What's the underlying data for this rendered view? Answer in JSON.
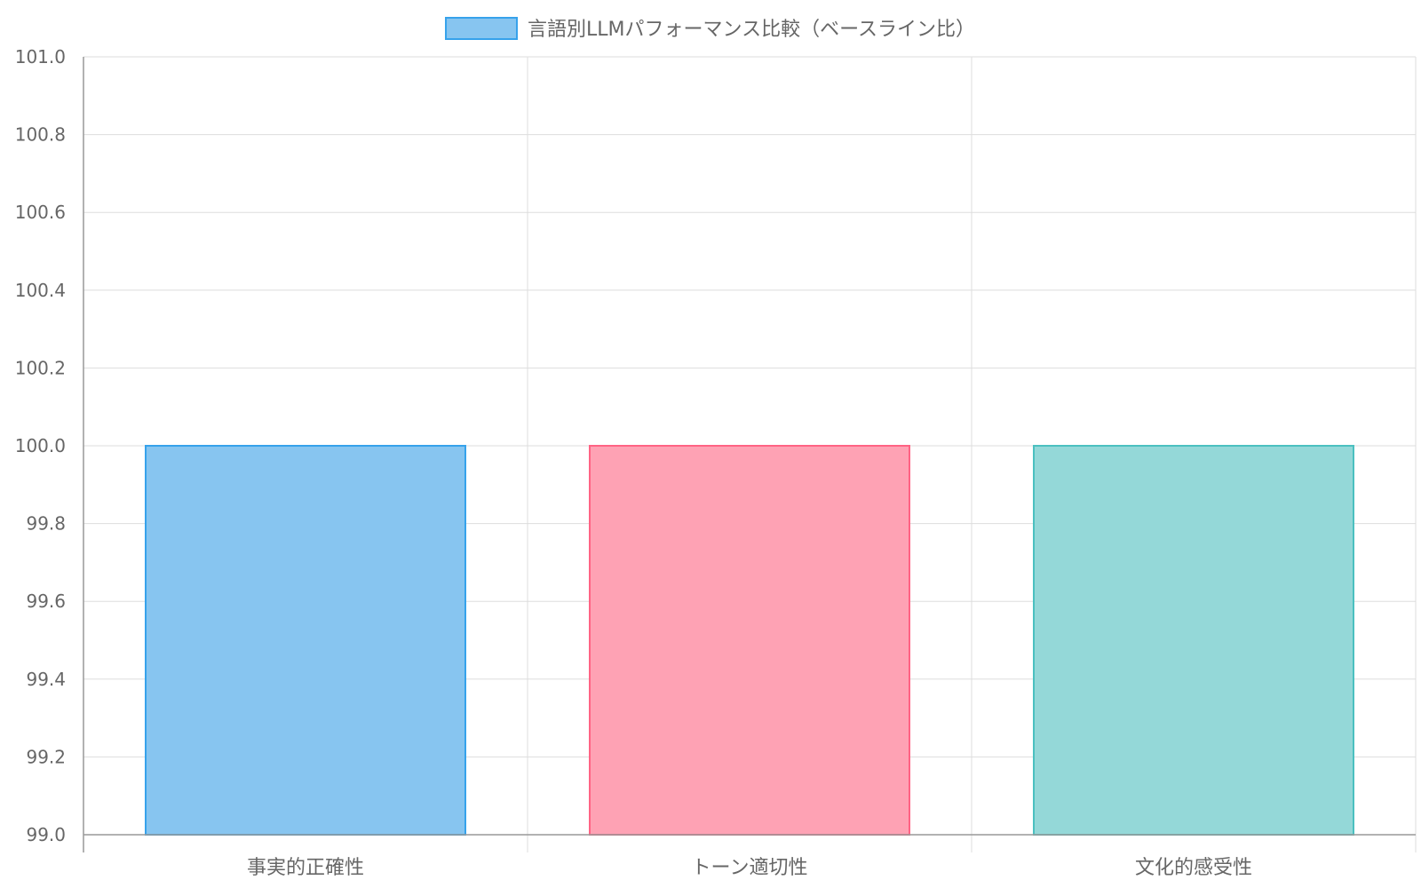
{
  "chart_data": {
    "type": "bar",
    "legend": {
      "label": "言語別LLMパフォーマンス比較（ベースライン比）",
      "position": "top-center"
    },
    "categories": [
      "事実的正確性",
      "トーン適切性",
      "文化的感受性"
    ],
    "series": [
      {
        "name": "言語別LLMパフォーマンス比較（ベースライン比）",
        "values": [
          100,
          100,
          100
        ]
      }
    ],
    "ylim": [
      99.0,
      101.0
    ],
    "y_ticks": [
      "101.0",
      "100.8",
      "100.6",
      "100.4",
      "100.2",
      "100.0",
      "99.8",
      "99.6",
      "99.4",
      "99.2",
      "99.0"
    ],
    "grid": true,
    "bar_colors": [
      {
        "fill": "#87c5f0",
        "stroke": "#36a2eb"
      },
      {
        "fill": "#fea2b4",
        "stroke": "#ff6384"
      },
      {
        "fill": "#94d8d8",
        "stroke": "#4bc0c0"
      }
    ],
    "legend_colors": {
      "fill": "#87c5f0",
      "stroke": "#36a2eb"
    },
    "axis_color": "#999999",
    "grid_color": "#dddddd",
    "text_color": "#666666"
  }
}
